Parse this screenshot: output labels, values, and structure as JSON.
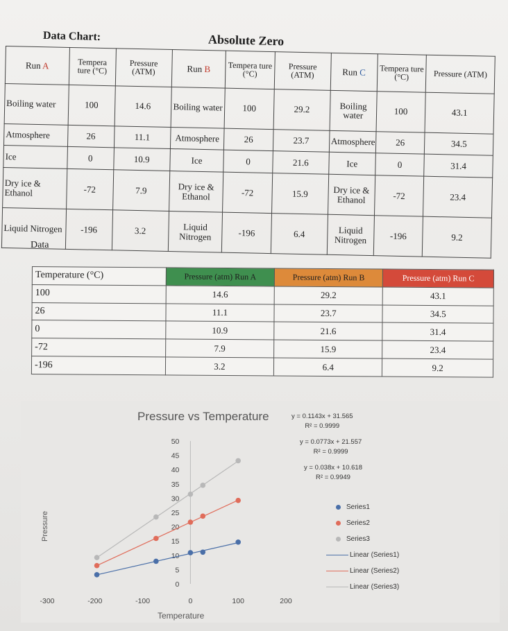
{
  "page": {
    "title_left": "Data Chart:",
    "title_center": "Absolute Zero",
    "data_caption": "Data"
  },
  "data_table": {
    "runs": [
      {
        "label_prefix": "Run ",
        "letter": "A",
        "letter_color": "#c0392b",
        "temp_header": "Tempera ture (°C)",
        "pressure_header": "Pressure (ATM)"
      },
      {
        "label_prefix": "Run ",
        "letter": "B",
        "letter_color": "#c0392b",
        "temp_header": "Tempera ture (°C)",
        "pressure_header": "Pressure (ATM)"
      },
      {
        "label_prefix": "Run ",
        "letter": "C",
        "letter_color": "#2c5aa0",
        "temp_header": "Tempera ture (°C)",
        "pressure_header": "Pressure (ATM)"
      }
    ],
    "rows": [
      {
        "label": "Boiling water",
        "temp": "100",
        "pA": "14.6",
        "pB": "29.2",
        "pC": "43.1"
      },
      {
        "label": "Atmosphere",
        "temp": "26",
        "pA": "11.1",
        "pB": "23.7",
        "pC": "34.5"
      },
      {
        "label": "Ice",
        "temp": "0",
        "pA": "10.9",
        "pB": "21.6",
        "pC": "31.4"
      },
      {
        "label": "Dry ice & Ethanol",
        "temp": "-72",
        "pA": "7.9",
        "pB": "15.9",
        "pC": "23.4"
      },
      {
        "label": "Liquid Nitrogen",
        "temp": "-196",
        "pA": "3.2",
        "pB": "6.4",
        "pC": "9.2"
      }
    ]
  },
  "summary_table": {
    "headers": [
      "Temperature (°C)",
      "Pressure (atm) Run A",
      "Pressure (atm) Run B",
      "Pressure (atm) Run C"
    ],
    "header_colors": [
      "#f4f3f1",
      "#3f8f4f",
      "#dd8a3a",
      "#d44a3a"
    ],
    "rows": [
      [
        "100",
        "14.6",
        "29.2",
        "43.1"
      ],
      [
        "26",
        "11.1",
        "23.7",
        "34.5"
      ],
      [
        "0",
        "10.9",
        "21.6",
        "31.4"
      ],
      [
        "-72",
        "7.9",
        "15.9",
        "23.4"
      ],
      [
        "-196",
        "3.2",
        "6.4",
        "9.2"
      ]
    ]
  },
  "chart_data": {
    "type": "scatter",
    "title": "Pressure vs Temperature",
    "xlabel": "Temperature",
    "ylabel": "Pressure",
    "xlim": [
      -300,
      200
    ],
    "ylim": [
      0,
      50
    ],
    "x_ticks": [
      "-300",
      "-200",
      "-100",
      "0",
      "100",
      "200"
    ],
    "y_ticks": [
      "0",
      "5",
      "10",
      "15",
      "20",
      "25",
      "30",
      "35",
      "40",
      "45",
      "50"
    ],
    "x": [
      100,
      26,
      0,
      -72,
      -196
    ],
    "series": [
      {
        "name": "Series1",
        "values": [
          14.6,
          11.1,
          10.9,
          7.9,
          3.2
        ],
        "color": "#4a6fa8"
      },
      {
        "name": "Series2",
        "values": [
          29.2,
          23.7,
          21.6,
          15.9,
          6.4
        ],
        "color": "#e06c5a"
      },
      {
        "name": "Series3",
        "values": [
          43.1,
          34.5,
          31.4,
          23.4,
          9.2
        ],
        "color": "#b8b8b8"
      }
    ],
    "trendlines": [
      {
        "name": "Linear (Series1)",
        "color": "#4a6fa8"
      },
      {
        "name": "Linear (Series2)",
        "color": "#e06c5a"
      },
      {
        "name": "Linear (Series3)",
        "color": "#b8b8b8"
      }
    ],
    "equations": [
      {
        "eq": "y = 0.1143x + 31.565",
        "r2": "R² = 0.9999"
      },
      {
        "eq": "y = 0.0773x + 21.557",
        "r2": "R² = 0.9999"
      },
      {
        "eq": "y = 0.038x + 10.618",
        "r2": "R² = 0.9949"
      }
    ],
    "grid": false,
    "legend": "right"
  }
}
